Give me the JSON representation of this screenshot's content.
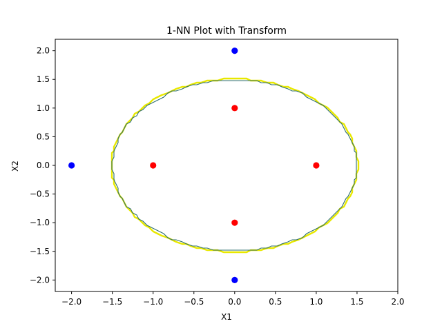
{
  "chart_data": {
    "type": "scatter",
    "title": "1-NN Plot with Transform",
    "xlabel": "X1",
    "ylabel": "X2",
    "xlim": [
      -2.2,
      2.0
    ],
    "ylim": [
      -2.2,
      2.2
    ],
    "xticks": [
      -2.0,
      -1.5,
      -1.0,
      -0.5,
      0.0,
      0.5,
      1.0,
      1.5,
      2.0
    ],
    "xtick_labels": [
      "−2.0",
      "−1.5",
      "−1.0",
      "−0.5",
      "0.0",
      "0.5",
      "1.0",
      "1.5",
      "2.0"
    ],
    "yticks": [
      -2.0,
      -1.5,
      -1.0,
      -0.5,
      0.0,
      0.5,
      1.0,
      1.5,
      2.0
    ],
    "ytick_labels": [
      "−2.0",
      "−1.5",
      "−1.0",
      "−0.5",
      "0.0",
      "0.5",
      "1.0",
      "1.5",
      "2.0"
    ],
    "grid": false,
    "legend": "none",
    "series": [
      {
        "color": "#0000ff",
        "points": [
          [
            -2.0,
            0.0
          ],
          [
            0.0,
            2.0
          ],
          [
            0.0,
            -2.0
          ]
        ]
      },
      {
        "color": "#ff0000",
        "points": [
          [
            -1.0,
            0.0
          ],
          [
            0.0,
            1.0
          ],
          [
            0.0,
            -1.0
          ],
          [
            1.0,
            0.0
          ]
        ]
      }
    ],
    "decision_boundary": {
      "shape": "circle",
      "center": [
        0.0,
        0.0
      ],
      "radius": 1.5,
      "colors": [
        "#2c6e6e",
        "#e8e800"
      ]
    }
  }
}
